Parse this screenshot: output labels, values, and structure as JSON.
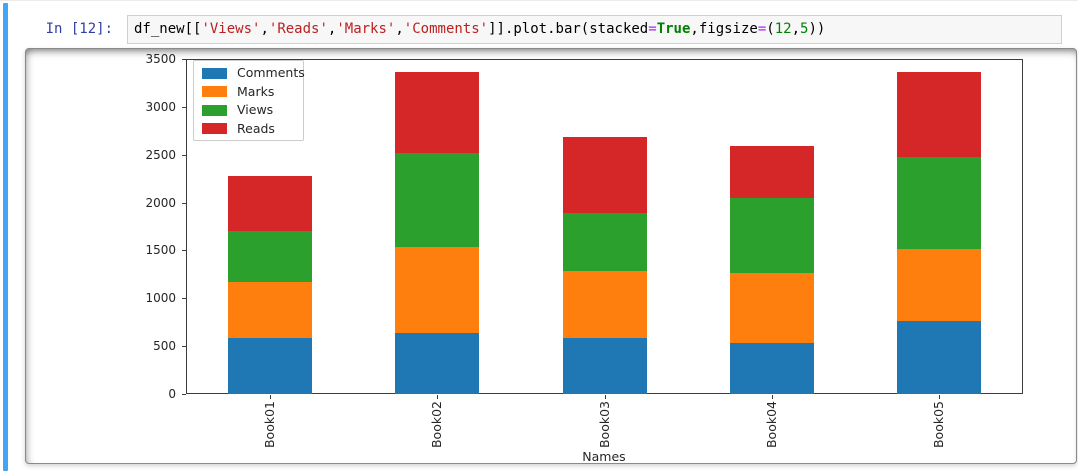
{
  "cell": {
    "prompt": "In [12]:",
    "code_tokens": [
      {
        "text": "df_new[[",
        "type": "plain"
      },
      {
        "text": "'Views'",
        "type": "string"
      },
      {
        "text": ",",
        "type": "plain"
      },
      {
        "text": "'Reads'",
        "type": "string"
      },
      {
        "text": ",",
        "type": "plain"
      },
      {
        "text": "'Marks'",
        "type": "string"
      },
      {
        "text": ",",
        "type": "plain"
      },
      {
        "text": "'Comments'",
        "type": "string"
      },
      {
        "text": "]].plot.bar(stacked",
        "type": "plain"
      },
      {
        "text": "=",
        "type": "operator"
      },
      {
        "text": "True",
        "type": "keyword"
      },
      {
        "text": ",figsize",
        "type": "plain"
      },
      {
        "text": "=",
        "type": "operator"
      },
      {
        "text": "(",
        "type": "plain"
      },
      {
        "text": "12",
        "type": "number"
      },
      {
        "text": ",",
        "type": "plain"
      },
      {
        "text": "5",
        "type": "number"
      },
      {
        "text": "))",
        "type": "plain"
      }
    ]
  },
  "chart_data": {
    "type": "bar",
    "stacked": true,
    "title": "",
    "xlabel": "Names",
    "ylabel": "",
    "categories": [
      "Book01",
      "Book02",
      "Book03",
      "Book04",
      "Book05"
    ],
    "series": [
      {
        "name": "Comments",
        "color": "#1f77b4",
        "values": [
          580,
          640,
          590,
          530,
          760
        ]
      },
      {
        "name": "Marks",
        "color": "#ff7f0e",
        "values": [
          590,
          900,
          690,
          730,
          760
        ]
      },
      {
        "name": "Views",
        "color": "#2ca02c",
        "values": [
          530,
          980,
          610,
          790,
          960
        ]
      },
      {
        "name": "Reads",
        "color": "#d62728",
        "values": [
          580,
          840,
          800,
          540,
          880
        ]
      }
    ],
    "stack_totals": [
      2280,
      3360,
      2690,
      2590,
      3360
    ],
    "ylim": [
      0,
      3500
    ],
    "yticks": [
      0,
      500,
      1000,
      1500,
      2000,
      2500,
      3000,
      3500
    ],
    "xtick_rotation_deg": 90,
    "legend_position": "upper left",
    "grid": false
  },
  "colors": {
    "cell_indicator": "#42a5f5",
    "prompt_text": "#303F9F",
    "code_box_bg": "#f7f7f7",
    "code_box_border": "#cfcfcf",
    "axes_spine": "#3c3c3c"
  }
}
